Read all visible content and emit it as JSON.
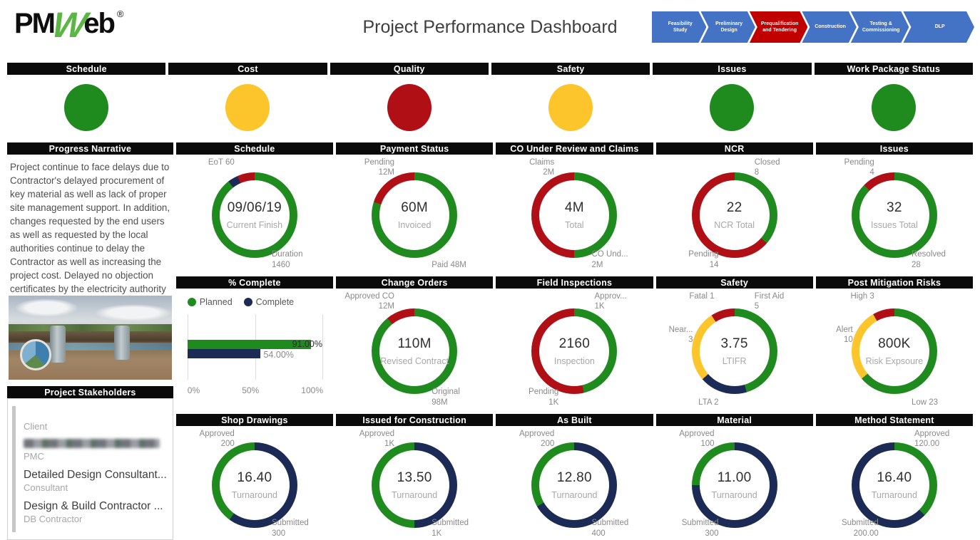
{
  "colors": {
    "green": "#1f8b1f",
    "yellow": "#fcc52c",
    "red": "#b00f15",
    "navy": "#1c2b55",
    "stageBlue": "#4472c4",
    "stageActive": "#c00000",
    "headerBar": "#0a0a0a",
    "labelGray": "#8a8a8a",
    "logoGreen": "#5bb646",
    "logoBlack": "#0d0d0d"
  },
  "header": {
    "logo": {
      "pm": "PM",
      "w": "W",
      "eb": "eb",
      "reg": "®"
    },
    "title": "Project Performance Dashboard",
    "stages": [
      {
        "label": "Feasibility Study",
        "active": false,
        "flex": 1
      },
      {
        "label": "Preliminary Design",
        "active": false,
        "flex": 1
      },
      {
        "label": "Prequalification and Tendering",
        "active": true,
        "flex": 1.1
      },
      {
        "label": "Construction",
        "active": false,
        "flex": 1
      },
      {
        "label": "Testing & Commissioning",
        "active": false,
        "flex": 1.1
      },
      {
        "label": "DLP",
        "active": false,
        "flex": 1.45
      }
    ]
  },
  "kpis": [
    {
      "label": "Schedule",
      "status": "green"
    },
    {
      "label": "Cost",
      "status": "yellow"
    },
    {
      "label": "Quality",
      "status": "red"
    },
    {
      "label": "Safety",
      "status": "yellow"
    },
    {
      "label": "Issues",
      "status": "green"
    },
    {
      "label": "Work Package Status",
      "status": "green"
    }
  ],
  "narrative": {
    "title": "Progress Narrative",
    "text": "Project continue to face delays due to Contractor's delayed procurement of key material as well as lack of proper site management support. In addition, changes requested by the end users as well as requested by the local authorities continue to delay the Contractor as well as increasing the project cost. Delayed no objection certificates by the electricity authority is delaying the application for permanent power supply."
  },
  "stakeholders": {
    "title": "Project Stakeholders",
    "items": [
      {
        "name": "",
        "role": "Client",
        "redacted": false
      },
      {
        "name": "",
        "role": "PMC",
        "redacted": true
      },
      {
        "name": "Detailed Design Consultant...",
        "role": "Consultant",
        "redacted": false
      },
      {
        "name": "Design & Build Contractor ...",
        "role": "DB Contractor",
        "redacted": false
      }
    ]
  },
  "chart_data": [
    {
      "id": "pct-complete",
      "type": "bar",
      "title": "% Complete",
      "orientation": "horizontal",
      "legend": [
        {
          "label": "Planned",
          "color": "green"
        },
        {
          "label": "Complete",
          "color": "navy"
        }
      ],
      "bars": [
        {
          "name": "Planned",
          "value": 91,
          "label": "91.00%",
          "color": "green"
        },
        {
          "name": "Complete",
          "value": 54,
          "label": "54.00%",
          "color": "navy"
        }
      ],
      "xlim": [
        0,
        100
      ],
      "xticks": [
        "0%",
        "50%",
        "100%"
      ],
      "grid": [
        2,
        1
      ]
    },
    {
      "id": "schedule-donut",
      "type": "donut",
      "title": "Schedule",
      "center_value": "09/06/19",
      "center_label": "Current Finish",
      "segments": [
        {
          "color": "green",
          "frac": 0.895,
          "name": "Duration",
          "value": "1460"
        },
        {
          "color": "navy",
          "frac": 0.039,
          "name": "EoT",
          "value": "60"
        },
        {
          "color": "red",
          "frac": 0.066,
          "name": "",
          "value": ""
        }
      ],
      "labels": [
        {
          "pos": "tl",
          "lines": [
            "EoT 60"
          ]
        },
        {
          "pos": "br",
          "lines": [
            "Duration",
            "1460"
          ]
        }
      ],
      "grid": [
        1,
        1
      ]
    },
    {
      "id": "payment-status",
      "type": "donut",
      "title": "Payment Status",
      "center_value": "60M",
      "center_label": "Invoiced",
      "segments": [
        {
          "color": "green",
          "frac": 0.8,
          "name": "Paid",
          "value": "48M"
        },
        {
          "color": "red",
          "frac": 0.2,
          "name": "Pending",
          "value": "12M"
        }
      ],
      "labels": [
        {
          "pos": "tl",
          "lines": [
            "Pending",
            "12M"
          ]
        },
        {
          "pos": "br",
          "lines": [
            "Paid 48M"
          ]
        }
      ],
      "grid": [
        1,
        2
      ]
    },
    {
      "id": "co-claims",
      "type": "donut",
      "title": "CO Under Review and Claims",
      "center_value": "4M",
      "center_label": "Total",
      "segments": [
        {
          "color": "green",
          "frac": 0.5,
          "name": "CO Und...",
          "value": "2M"
        },
        {
          "color": "red",
          "frac": 0.5,
          "name": "Claims",
          "value": "2M"
        }
      ],
      "labels": [
        {
          "pos": "tl",
          "lines": [
            "Claims",
            "2M"
          ]
        },
        {
          "pos": "br",
          "lines": [
            "CO Und...",
            "2M"
          ]
        }
      ],
      "grid": [
        1,
        3
      ]
    },
    {
      "id": "ncr",
      "type": "donut",
      "title": "NCR",
      "center_value": "22",
      "center_label": "NCR Total",
      "segments": [
        {
          "color": "green",
          "frac": 0.364,
          "name": "Closed",
          "value": "8"
        },
        {
          "color": "red",
          "frac": 0.636,
          "name": "Pending",
          "value": "14"
        }
      ],
      "labels": [
        {
          "pos": "tr",
          "lines": [
            "Closed",
            "8"
          ]
        },
        {
          "pos": "bl",
          "lines": [
            "Pending",
            "14"
          ]
        }
      ],
      "grid": [
        1,
        4
      ]
    },
    {
      "id": "issues-detail",
      "type": "donut",
      "title": "Issues",
      "center_value": "32",
      "center_label": "Issues Total",
      "segments": [
        {
          "color": "green",
          "frac": 0.875,
          "name": "Resolved",
          "value": "28"
        },
        {
          "color": "red",
          "frac": 0.125,
          "name": "Pending",
          "value": "4"
        }
      ],
      "labels": [
        {
          "pos": "tl",
          "lines": [
            "Pending",
            "4"
          ]
        },
        {
          "pos": "br",
          "lines": [
            "Resolved",
            "28"
          ]
        }
      ],
      "grid": [
        1,
        5
      ]
    },
    {
      "id": "change-orders",
      "type": "donut",
      "title": "Change Orders",
      "center_value": "110M",
      "center_label": "Revised Contract",
      "segments": [
        {
          "color": "green",
          "frac": 0.891,
          "name": "Original",
          "value": "98M"
        },
        {
          "color": "red",
          "frac": 0.109,
          "name": "Approved CO",
          "value": "12M"
        }
      ],
      "labels": [
        {
          "pos": "tl",
          "lines": [
            "Approved CO",
            "12M"
          ]
        },
        {
          "pos": "br",
          "lines": [
            "Original",
            "98M"
          ]
        }
      ],
      "grid": [
        2,
        2
      ]
    },
    {
      "id": "field-inspections",
      "type": "donut",
      "title": "Field Inspections",
      "center_value": "2160",
      "center_label": "Inspection",
      "segments": [
        {
          "color": "green",
          "frac": 0.463,
          "name": "Approv...",
          "value": "1K"
        },
        {
          "color": "red",
          "frac": 0.537,
          "name": "Pending",
          "value": "1K"
        }
      ],
      "labels": [
        {
          "pos": "tr",
          "lines": [
            "Approv...",
            "1K"
          ]
        },
        {
          "pos": "bl",
          "lines": [
            "Pending",
            "1K"
          ]
        }
      ],
      "grid": [
        2,
        3
      ]
    },
    {
      "id": "safety-detail",
      "type": "donut",
      "title": "Safety",
      "center_value": "3.75",
      "center_label": "LTIFR",
      "segments": [
        {
          "color": "green",
          "frac": 0.4545,
          "name": "First Aid",
          "value": "5"
        },
        {
          "color": "navy",
          "frac": 0.1818,
          "name": "LTA",
          "value": "2"
        },
        {
          "color": "yellow",
          "frac": 0.2727,
          "name": "Near...",
          "value": "3"
        },
        {
          "color": "red",
          "frac": 0.091,
          "name": "Fatal",
          "value": "1"
        }
      ],
      "labels": [
        {
          "pos": "tl",
          "lines": [
            "Fatal 1"
          ]
        },
        {
          "pos": "l",
          "lines": [
            "Near...",
            "3"
          ]
        },
        {
          "pos": "tr",
          "lines": [
            "First Aid",
            "5"
          ]
        },
        {
          "pos": "bl",
          "lines": [
            "LTA 2"
          ]
        }
      ],
      "grid": [
        2,
        4
      ]
    },
    {
      "id": "post-mitigation-risks",
      "type": "donut",
      "title": "Post Mitigation Risks",
      "center_value": "800K",
      "center_label": "Risk Expsoure",
      "segments": [
        {
          "color": "green",
          "frac": 0.639,
          "name": "Low",
          "value": "23"
        },
        {
          "color": "yellow",
          "frac": 0.278,
          "name": "Alert",
          "value": "10"
        },
        {
          "color": "red",
          "frac": 0.083,
          "name": "High",
          "value": "3"
        }
      ],
      "labels": [
        {
          "pos": "tl",
          "lines": [
            "High 3"
          ]
        },
        {
          "pos": "l",
          "lines": [
            "Alert",
            "10"
          ]
        },
        {
          "pos": "br",
          "lines": [
            "Low 23"
          ]
        }
      ],
      "grid": [
        2,
        5
      ]
    },
    {
      "id": "shop-drawings",
      "type": "donut",
      "title": "Shop Drawings",
      "center_value": "16.40",
      "center_label": "Turnaround",
      "segments": [
        {
          "color": "navy",
          "frac": 0.6,
          "name": "Submitted",
          "value": "300"
        },
        {
          "color": "green",
          "frac": 0.4,
          "name": "Approved",
          "value": "200"
        }
      ],
      "labels": [
        {
          "pos": "tl",
          "lines": [
            "Approved",
            "200"
          ]
        },
        {
          "pos": "br",
          "lines": [
            "Submitted",
            "300"
          ]
        }
      ],
      "grid": [
        3,
        1
      ]
    },
    {
      "id": "issued-for-construction",
      "type": "donut",
      "title": "Issued for Construction",
      "center_value": "13.50",
      "center_label": "Turnaround",
      "segments": [
        {
          "color": "navy",
          "frac": 0.5,
          "name": "Submitted",
          "value": "1K"
        },
        {
          "color": "green",
          "frac": 0.5,
          "name": "Approved",
          "value": "1K"
        }
      ],
      "labels": [
        {
          "pos": "tl",
          "lines": [
            "Approved",
            "1K"
          ]
        },
        {
          "pos": "br",
          "lines": [
            "Submitted",
            "1K"
          ]
        }
      ],
      "grid": [
        3,
        2
      ]
    },
    {
      "id": "as-built",
      "type": "donut",
      "title": "As Built",
      "center_value": "12.80",
      "center_label": "Turnaround",
      "segments": [
        {
          "color": "navy",
          "frac": 0.667,
          "name": "Submitted",
          "value": "400"
        },
        {
          "color": "green",
          "frac": 0.333,
          "name": "Approved",
          "value": "200"
        }
      ],
      "labels": [
        {
          "pos": "tl",
          "lines": [
            "Approved",
            "200"
          ]
        },
        {
          "pos": "br",
          "lines": [
            "Submitted",
            "400"
          ]
        }
      ],
      "grid": [
        3,
        3
      ]
    },
    {
      "id": "material",
      "type": "donut",
      "title": "Material",
      "center_value": "11.00",
      "center_label": "Turnaround",
      "segments": [
        {
          "color": "navy",
          "frac": 0.75,
          "name": "Submitted",
          "value": "300"
        },
        {
          "color": "green",
          "frac": 0.25,
          "name": "Approved",
          "value": "100"
        }
      ],
      "labels": [
        {
          "pos": "tl",
          "lines": [
            "Approved",
            "100"
          ]
        },
        {
          "pos": "bl",
          "lines": [
            "Submitted",
            "300"
          ]
        }
      ],
      "grid": [
        3,
        4
      ]
    },
    {
      "id": "method-statement",
      "type": "donut",
      "title": "Method Statement",
      "center_value": "16.40",
      "center_label": "Turnaround",
      "segments": [
        {
          "color": "green",
          "frac": 0.375,
          "name": "Approved",
          "value": "120.00"
        },
        {
          "color": "navy",
          "frac": 0.625,
          "name": "Submitted",
          "value": "200.00"
        }
      ],
      "labels": [
        {
          "pos": "tr",
          "lines": [
            "Approved",
            "120.00"
          ]
        },
        {
          "pos": "bl",
          "lines": [
            "Submitted",
            "200.00"
          ]
        }
      ],
      "grid": [
        3,
        5
      ]
    }
  ]
}
